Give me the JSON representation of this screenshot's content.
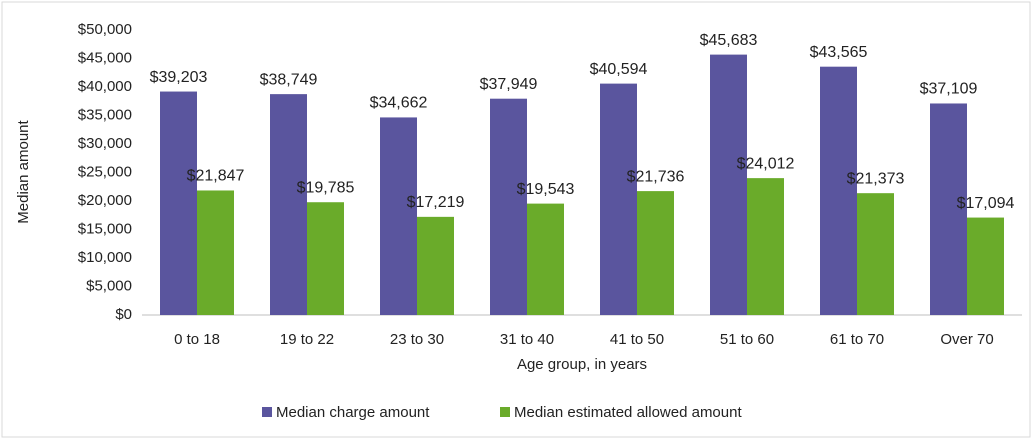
{
  "chart_data": {
    "type": "bar",
    "xlabel": "Age group, in years",
    "ylabel": "Median amount",
    "categories": [
      "0 to 18",
      "19 to 22",
      "23 to 30",
      "31 to 40",
      "41 to 50",
      "51 to 60",
      "61 to 70",
      "Over 70"
    ],
    "series": [
      {
        "name": "Median charge amount",
        "color": "#5a559e",
        "values": [
          39203,
          38749,
          34662,
          37949,
          40594,
          45683,
          43565,
          37109
        ],
        "value_labels": [
          "$39,203",
          "$38,749",
          "$34,662",
          "$37,949",
          "$40,594",
          "$45,683",
          "$43,565",
          "$37,109"
        ]
      },
      {
        "name": "Median estimated allowed amount",
        "color": "#6aab2a",
        "values": [
          21847,
          19785,
          17219,
          19543,
          21736,
          24012,
          21373,
          17094
        ],
        "value_labels": [
          "$21,847",
          "$19,785",
          "$17,219",
          "$19,543",
          "$21,736",
          "$24,012",
          "$21,373",
          "$17,094"
        ]
      }
    ],
    "ylim": [
      0,
      50000
    ],
    "yticks": [
      {
        "value": 0,
        "label": "$0"
      },
      {
        "value": 5000,
        "label": "$5,000"
      },
      {
        "value": 10000,
        "label": "$10,000"
      },
      {
        "value": 15000,
        "label": "$15,000"
      },
      {
        "value": 20000,
        "label": "$20,000"
      },
      {
        "value": 25000,
        "label": "$25,000"
      },
      {
        "value": 30000,
        "label": "$30,000"
      },
      {
        "value": 35000,
        "label": "$35,000"
      },
      {
        "value": 40000,
        "label": "$40,000"
      },
      {
        "value": 45000,
        "label": "$45,000"
      },
      {
        "value": 50000,
        "label": "$50,000"
      }
    ],
    "grid": false,
    "legend": "bottom"
  }
}
